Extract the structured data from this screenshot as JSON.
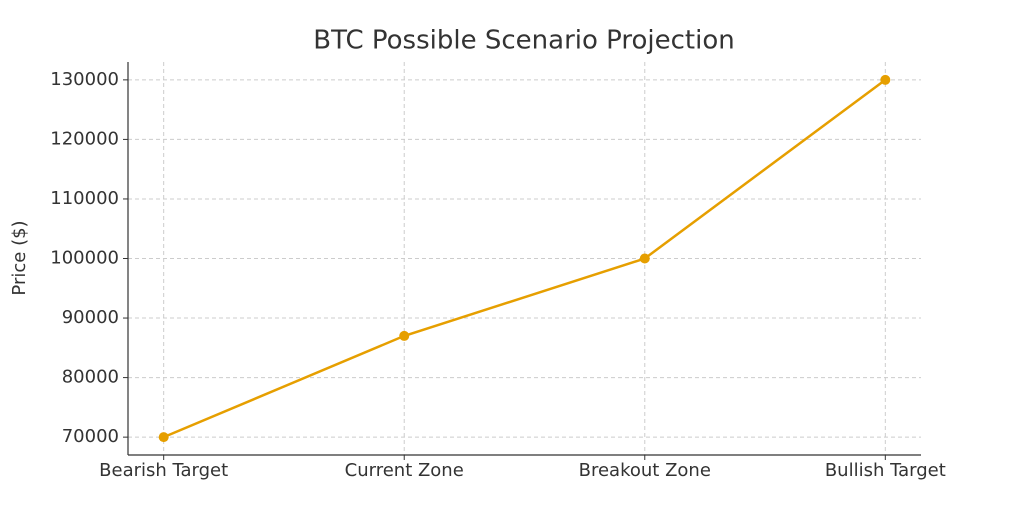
{
  "chart_data": {
    "type": "line",
    "title": "BTC Possible Scenario Projection",
    "y_label": "Price ($)",
    "categories": [
      "Bearish Target",
      "Current Zone",
      "Breakout Zone",
      "Bullish Target"
    ],
    "values": [
      70000,
      87000,
      100000,
      130000
    ],
    "color": "#e69f00",
    "ylim": [
      67000,
      133000
    ],
    "yticks": [
      70000,
      80000,
      90000,
      100000,
      110000,
      120000,
      130000
    ],
    "grid": true
  }
}
